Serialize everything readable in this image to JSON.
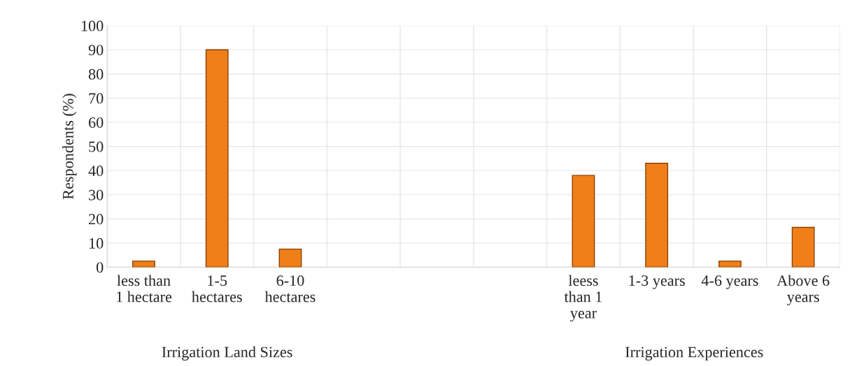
{
  "chart_data": {
    "type": "bar",
    "categories": [
      "less than\n1 hectare",
      "1-5\nhectares",
      "6-10\nhectares",
      null,
      null,
      null,
      "leess\nthan 1\nyear",
      "1-3 years",
      "4-6 years",
      "Above 6\nyears"
    ],
    "values": [
      2.5,
      90,
      7.5,
      null,
      null,
      null,
      38,
      43,
      2.5,
      16.5
    ],
    "color": "#f07f1a",
    "ylabel": "Respondents (%)",
    "ylim": [
      0,
      100
    ],
    "yticks": [
      0,
      10,
      20,
      30,
      40,
      50,
      60,
      70,
      80,
      90,
      100
    ],
    "grid": true,
    "annotations": [
      "Irrigation Land Sizes",
      "Irrigation Experiences"
    ]
  }
}
